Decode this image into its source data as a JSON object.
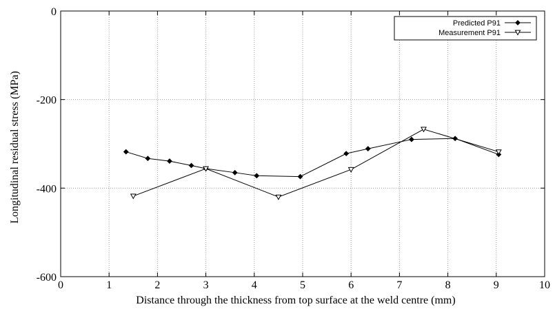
{
  "chart_data": {
    "type": "line",
    "title": "",
    "xlabel": "Distance through the thickness from top surface at the weld centre (mm)",
    "ylabel": "Longitudinal residual stress (MPa)",
    "xlim": [
      0,
      10
    ],
    "ylim": [
      -600,
      0
    ],
    "x_ticks": [
      "0",
      "1",
      "2",
      "3",
      "4",
      "5",
      "6",
      "7",
      "8",
      "9",
      "10"
    ],
    "y_ticks": [
      "0",
      "-200",
      "-400",
      "-600"
    ],
    "grid": true,
    "legend_position": "top-right",
    "series": [
      {
        "name": "Predicted P91",
        "marker": "diamond",
        "points": [
          [
            1.35,
            -318
          ],
          [
            1.8,
            -333
          ],
          [
            2.25,
            -339
          ],
          [
            2.7,
            -349
          ],
          [
            3.0,
            -356
          ],
          [
            3.6,
            -365
          ],
          [
            4.05,
            -372
          ],
          [
            4.95,
            -374
          ],
          [
            5.9,
            -322
          ],
          [
            6.35,
            -311
          ],
          [
            7.25,
            -290
          ],
          [
            8.15,
            -288
          ],
          [
            9.05,
            -324
          ]
        ]
      },
      {
        "name": "Measurement P91",
        "marker": "triangle-down",
        "points": [
          [
            1.5,
            -418
          ],
          [
            3.0,
            -356
          ],
          [
            4.5,
            -420
          ],
          [
            6.0,
            -358
          ],
          [
            7.5,
            -267
          ],
          [
            9.05,
            -318
          ]
        ]
      }
    ]
  }
}
